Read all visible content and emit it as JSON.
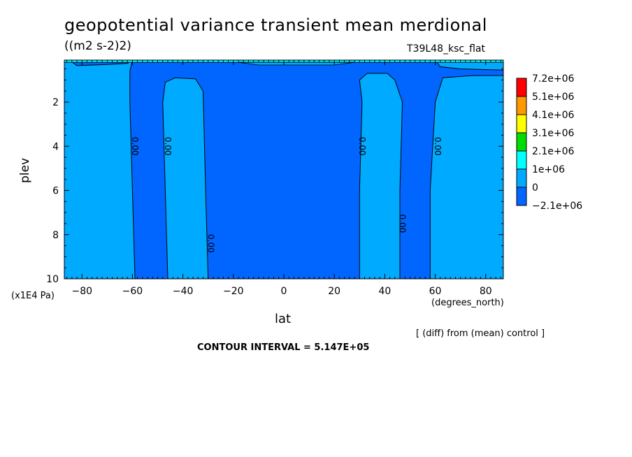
{
  "header": {
    "title": "geopotential variance transient mean merdional",
    "units": "((m2 s-2)2)",
    "run": "T39L48_ksc_flat"
  },
  "footer": {
    "diff_note": "[ (diff) from (mean) control ]",
    "contour_interval": "CONTOUR INTERVAL = 5.147E+05"
  },
  "chart_data": {
    "type": "contour",
    "title": "geopotential variance transient mean merdional",
    "xlabel": "lat",
    "x_unit": "(degrees_north)",
    "ylabel": "plev",
    "y_unit": "(x1E4 Pa)",
    "xlim": [
      -87,
      87
    ],
    "ylim": [
      10,
      0.1
    ],
    "x_ticks": [
      -80,
      -60,
      -40,
      -20,
      0,
      20,
      40,
      60,
      80
    ],
    "x_tick_labels": [
      "-80",
      "-60",
      "-40",
      "-20",
      "0",
      "20",
      "40",
      "60",
      "80"
    ],
    "y_ticks": [
      2,
      4,
      6,
      8,
      10
    ],
    "y_tick_labels": [
      "2",
      "4",
      "6",
      "8",
      "10"
    ],
    "colorbar": {
      "levels": [
        "7.2e+06",
        "5.1e+06",
        "4.1e+06",
        "3.1e+06",
        "2.1e+06",
        "1e+06",
        "0",
        "-2.1e+06"
      ],
      "colors": [
        "#ff0000",
        "#ff9900",
        "#ffff00",
        "#00dd00",
        "#00ffff",
        "#00aaff",
        "#0066ff"
      ]
    },
    "contour_labels": [
      {
        "text": "0.00",
        "lat": -59,
        "plev": 4.0
      },
      {
        "text": "0.00",
        "lat": -46,
        "plev": 4.0
      },
      {
        "text": "0.00",
        "lat": 31,
        "plev": 4.0
      },
      {
        "text": "0.00",
        "lat": 61,
        "plev": 4.0
      },
      {
        "text": "0.00",
        "lat": -29,
        "plev": 8.4
      },
      {
        "text": "0.00",
        "lat": 47,
        "plev": 7.5
      }
    ],
    "colors": {
      "negative": "#0066ff",
      "zero_to_1e6": "#00aaff",
      "band_1e6_2e6": "#00ffff"
    }
  }
}
